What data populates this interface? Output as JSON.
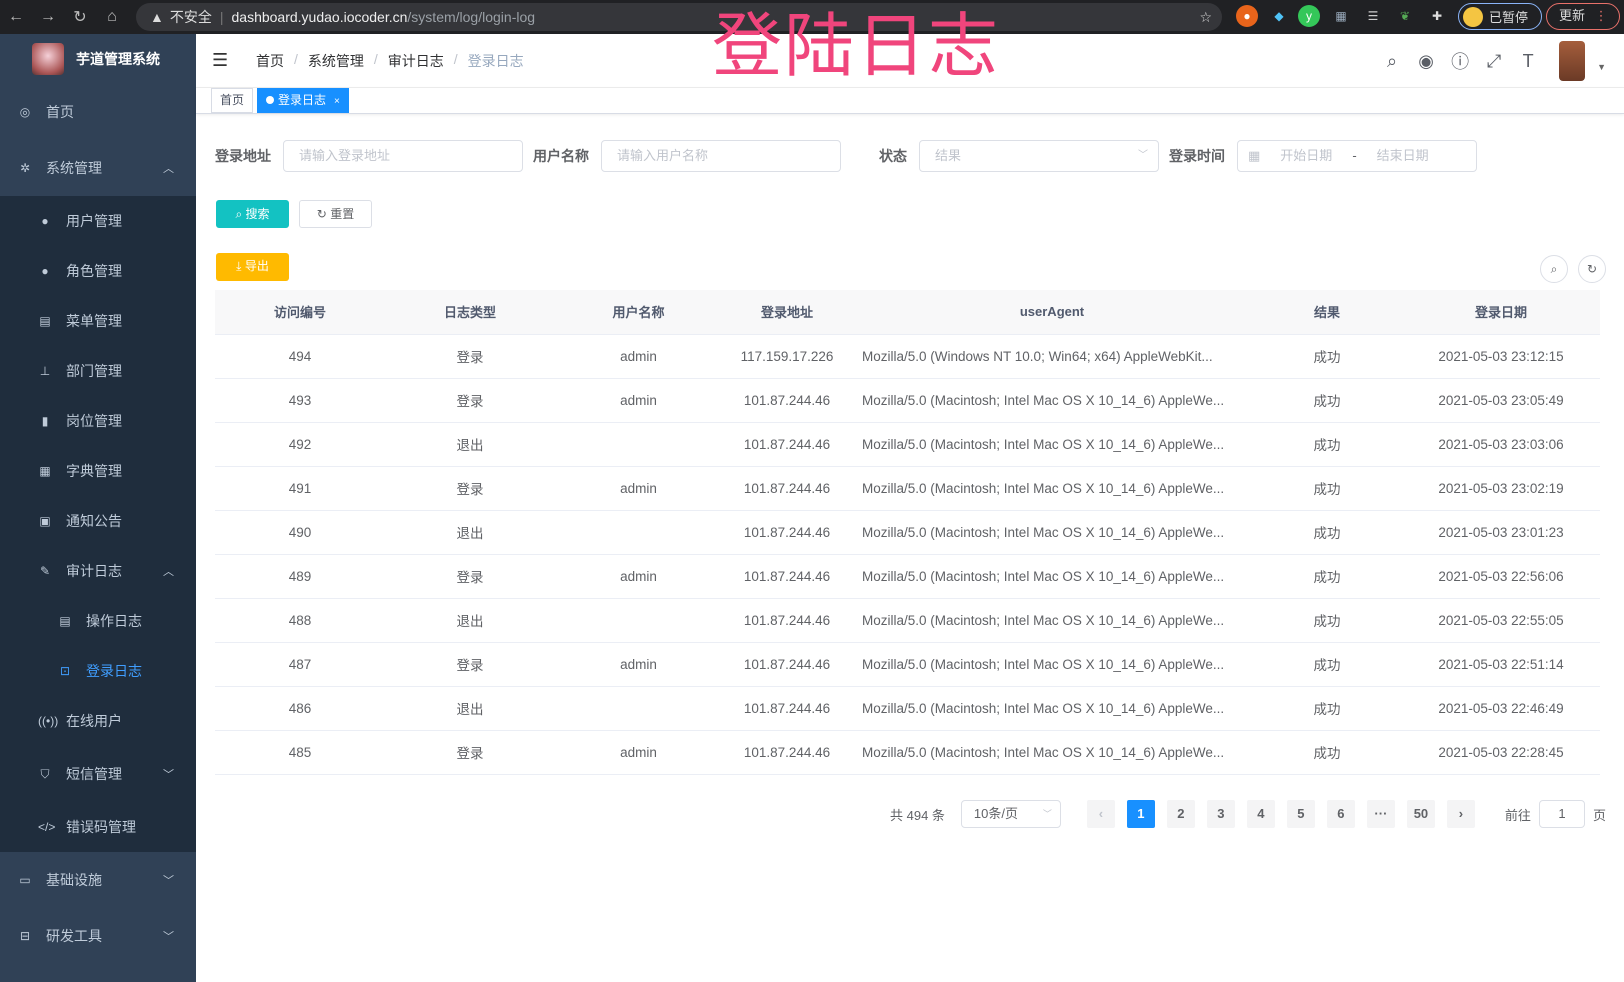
{
  "browser": {
    "security": "不安全",
    "host": "dashboard.yudao.iocoder.cn",
    "path": "/system/log/login-log",
    "profile_label": "已暂停",
    "update_label": "更新"
  },
  "overlay_title": "登陆日志",
  "sidebar": {
    "app_title": "芋道管理系统",
    "active_color": "#409eff",
    "items": [
      {
        "label": "首页",
        "icon": "dashboard-icon"
      },
      {
        "label": "系统管理",
        "icon": "gear-icon",
        "expanded": true
      },
      {
        "label": "用户管理",
        "icon": "user-icon"
      },
      {
        "label": "角色管理",
        "icon": "peoples-icon"
      },
      {
        "label": "菜单管理",
        "icon": "tree-table-icon"
      },
      {
        "label": "部门管理",
        "icon": "tree-icon"
      },
      {
        "label": "岗位管理",
        "icon": "post-icon"
      },
      {
        "label": "字典管理",
        "icon": "dict-icon"
      },
      {
        "label": "通知公告",
        "icon": "message-icon"
      },
      {
        "label": "审计日志",
        "icon": "log-icon",
        "expanded": true
      },
      {
        "label": "操作日志",
        "icon": "form-icon"
      },
      {
        "label": "登录日志",
        "icon": "logininfor-icon",
        "active": true
      },
      {
        "label": "在线用户",
        "icon": "online-icon"
      },
      {
        "label": "短信管理",
        "icon": "validcode-icon"
      },
      {
        "label": "错误码管理",
        "icon": "code-icon"
      },
      {
        "label": "基础设施",
        "icon": "monitor-icon"
      },
      {
        "label": "研发工具",
        "icon": "tool-icon"
      }
    ]
  },
  "breadcrumb": [
    "首页",
    "系统管理",
    "审计日志",
    "登录日志"
  ],
  "tags": [
    {
      "label": "首页"
    },
    {
      "label": "登录日志"
    }
  ],
  "filters": {
    "address_label": "登录地址",
    "address_placeholder": "请输入登录地址",
    "username_label": "用户名称",
    "username_placeholder": "请输入用户名称",
    "status_label": "状态",
    "status_placeholder": "结果",
    "time_label": "登录时间",
    "start_placeholder": "开始日期",
    "range_sep": "-",
    "end_placeholder": "结束日期"
  },
  "buttons": {
    "search": "搜索",
    "reset": "重置",
    "export": "导出"
  },
  "colors": {
    "search": "#13c2c2",
    "export": "#ffba00",
    "primary": "#1890ff"
  },
  "table": {
    "columns": [
      "访问编号",
      "日志类型",
      "用户名称",
      "登录地址",
      "userAgent",
      "结果",
      "登录日期"
    ],
    "rows": [
      [
        "494",
        "登录",
        "admin",
        "117.159.17.226",
        "Mozilla/5.0 (Windows NT 10.0; Win64; x64) AppleWebKit...",
        "成功",
        "2021-05-03 23:12:15"
      ],
      [
        "493",
        "登录",
        "admin",
        "101.87.244.46",
        "Mozilla/5.0 (Macintosh; Intel Mac OS X 10_14_6) AppleWe...",
        "成功",
        "2021-05-03 23:05:49"
      ],
      [
        "492",
        "退出",
        "",
        "101.87.244.46",
        "Mozilla/5.0 (Macintosh; Intel Mac OS X 10_14_6) AppleWe...",
        "成功",
        "2021-05-03 23:03:06"
      ],
      [
        "491",
        "登录",
        "admin",
        "101.87.244.46",
        "Mozilla/5.0 (Macintosh; Intel Mac OS X 10_14_6) AppleWe...",
        "成功",
        "2021-05-03 23:02:19"
      ],
      [
        "490",
        "退出",
        "",
        "101.87.244.46",
        "Mozilla/5.0 (Macintosh; Intel Mac OS X 10_14_6) AppleWe...",
        "成功",
        "2021-05-03 23:01:23"
      ],
      [
        "489",
        "登录",
        "admin",
        "101.87.244.46",
        "Mozilla/5.0 (Macintosh; Intel Mac OS X 10_14_6) AppleWe...",
        "成功",
        "2021-05-03 22:56:06"
      ],
      [
        "488",
        "退出",
        "",
        "101.87.244.46",
        "Mozilla/5.0 (Macintosh; Intel Mac OS X 10_14_6) AppleWe...",
        "成功",
        "2021-05-03 22:55:05"
      ],
      [
        "487",
        "登录",
        "admin",
        "101.87.244.46",
        "Mozilla/5.0 (Macintosh; Intel Mac OS X 10_14_6) AppleWe...",
        "成功",
        "2021-05-03 22:51:14"
      ],
      [
        "486",
        "退出",
        "",
        "101.87.244.46",
        "Mozilla/5.0 (Macintosh; Intel Mac OS X 10_14_6) AppleWe...",
        "成功",
        "2021-05-03 22:46:49"
      ],
      [
        "485",
        "登录",
        "admin",
        "101.87.244.46",
        "Mozilla/5.0 (Macintosh; Intel Mac OS X 10_14_6) AppleWe...",
        "成功",
        "2021-05-03 22:28:45"
      ]
    ]
  },
  "pagination": {
    "total": "共 494 条",
    "page_size": "10条/页",
    "pages": [
      "1",
      "2",
      "3",
      "4",
      "5",
      "6",
      "···",
      "50"
    ],
    "current": "1",
    "goto_label": "前往",
    "goto_value": "1",
    "goto_suffix": "页"
  }
}
